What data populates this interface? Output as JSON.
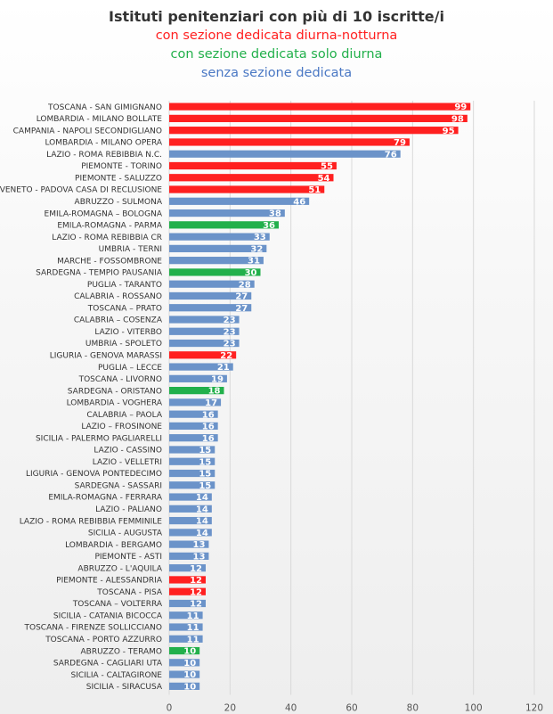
{
  "chart_data": {
    "type": "bar",
    "orientation": "horizontal",
    "title": "Istituti penitenziari con più di 10 iscritte/i",
    "legend_lines": [
      {
        "text": "con sezione dedicata diurna-notturna",
        "color": "#ff2020",
        "key": "dn"
      },
      {
        "text": "con sezione dedicata solo diurna",
        "color": "#22b04b",
        "key": "d"
      },
      {
        "text": "senza sezione dedicata",
        "color": "#4a78c4",
        "key": "n"
      }
    ],
    "colors": {
      "dn": "#ff2020",
      "d": "#22b04b",
      "n": "#6b93c9"
    },
    "xlim": [
      0,
      120
    ],
    "xticks": [
      0,
      20,
      40,
      60,
      80,
      100,
      120
    ],
    "grid": true,
    "categories": [
      "TOSCANA - SAN GIMIGNANO",
      "LOMBARDIA - MILANO BOLLATE",
      "CAMPANIA - NAPOLI SECONDIGLIANO",
      "LOMBARDIA - MILANO OPERA",
      "LAZIO - ROMA REBIBBIA N.C.",
      "PIEMONTE - TORINO",
      "PIEMONTE - SALUZZO",
      "VENETO - PADOVA CASA DI RECLUSIONE",
      "ABRUZZO - SULMONA",
      "EMILA-ROMAGNA – BOLOGNA",
      "EMILA-ROMAGNA - PARMA",
      "LAZIO - ROMA REBIBBIA CR",
      "UMBRIA - TERNI",
      "MARCHE - FOSSOMBRONE",
      "SARDEGNA - TEMPIO PAUSANIA",
      "PUGLIA - TARANTO",
      "CALABRIA - ROSSANO",
      "TOSCANA – PRATO",
      "CALABRIA – COSENZA",
      "LAZIO - VITERBO",
      "UMBRIA - SPOLETO",
      "LIGURIA - GENOVA MARASSI",
      "PUGLIA – LECCE",
      "TOSCANA - LIVORNO",
      "SARDEGNA - ORISTANO",
      "LOMBARDIA - VOGHERA",
      "CALABRIA – PAOLA",
      "LAZIO – FROSINONE",
      "SICILIA - PALERMO PAGLIARELLI",
      "LAZIO - CASSINO",
      "LAZIO - VELLETRI",
      "LIGURIA - GENOVA PONTEDECIMO",
      "SARDEGNA - SASSARI",
      "EMILA-ROMAGNA - FERRARA",
      "LAZIO - PALIANO",
      "LAZIO - ROMA REBIBBIA FEMMINILE",
      "SICILIA - AUGUSTA",
      "LOMBARDIA - BERGAMO",
      "PIEMONTE - ASTI",
      "ABRUZZO - L'AQUILA",
      "PIEMONTE - ALESSANDRIA",
      "TOSCANA - PISA",
      "TOSCANA – VOLTERRA",
      "SICILIA - CATANIA BICOCCA",
      "TOSCANA - FIRENZE SOLLICCIANO",
      "TOSCANA - PORTO AZZURRO",
      "ABRUZZO - TERAMO",
      "SARDEGNA - CAGLIARI UTA",
      "SICILIA - CALTAGIRONE",
      "SICILIA - SIRACUSA"
    ],
    "values": [
      99,
      98,
      95,
      79,
      76,
      55,
      54,
      51,
      46,
      38,
      36,
      33,
      32,
      31,
      30,
      28,
      27,
      27,
      23,
      23,
      23,
      22,
      21,
      19,
      18,
      17,
      16,
      16,
      16,
      15,
      15,
      15,
      15,
      14,
      14,
      14,
      14,
      13,
      13,
      12,
      12,
      12,
      12,
      11,
      11,
      11,
      10,
      10,
      10,
      10
    ],
    "types": [
      "dn",
      "dn",
      "dn",
      "dn",
      "n",
      "dn",
      "dn",
      "dn",
      "n",
      "n",
      "d",
      "n",
      "n",
      "n",
      "d",
      "n",
      "n",
      "n",
      "n",
      "n",
      "n",
      "dn",
      "n",
      "n",
      "d",
      "n",
      "n",
      "n",
      "n",
      "n",
      "n",
      "n",
      "n",
      "n",
      "n",
      "n",
      "n",
      "n",
      "n",
      "n",
      "dn",
      "dn",
      "n",
      "n",
      "n",
      "n",
      "d",
      "n",
      "n",
      "n"
    ]
  }
}
